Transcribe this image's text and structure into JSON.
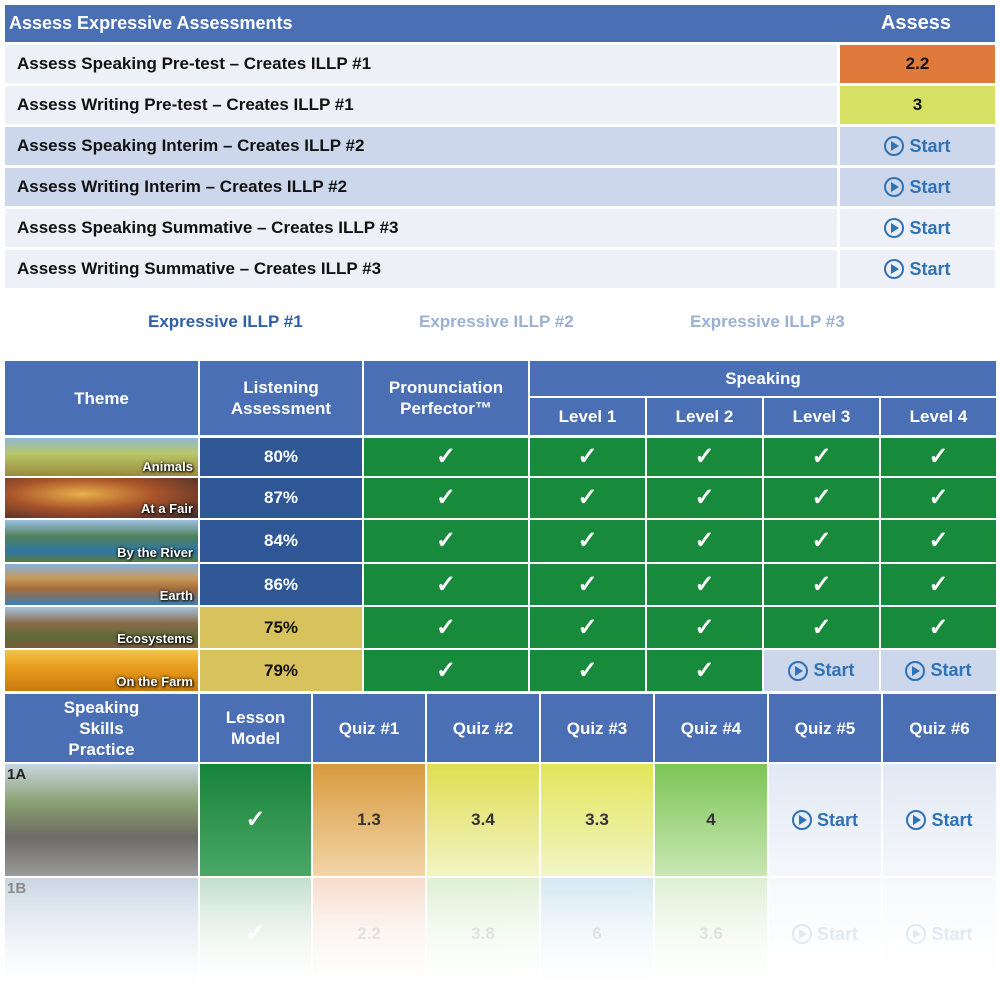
{
  "assessments": {
    "title": "Assess Expressive Assessments",
    "column_label": "Assess",
    "start_label": "Start",
    "rows": [
      {
        "label": "Assess Speaking Pre-test – Creates ILLP #1",
        "value": "2.2",
        "color": "#e07a3c"
      },
      {
        "label": "Assess Writing Pre-test – Creates ILLP #1",
        "value": "3",
        "color": "#d6e063"
      },
      {
        "label": "Assess Speaking Interim – Creates ILLP #2",
        "value": ""
      },
      {
        "label": "Assess Writing Interim – Creates ILLP #2",
        "value": ""
      },
      {
        "label": "Assess Speaking Summative – Creates ILLP #3",
        "value": ""
      },
      {
        "label": "Assess Writing Summative – Creates ILLP #3",
        "value": ""
      }
    ]
  },
  "illp_tabs": [
    "Expressive ILLP #1",
    "Expressive ILLP #2",
    "Expressive ILLP #3"
  ],
  "theme_table": {
    "headers": {
      "theme": "Theme",
      "listening": "Listening Assessment",
      "pronunciation": "Pronunciation Perfector™",
      "speaking": "Speaking",
      "levels": [
        "Level 1",
        "Level 2",
        "Level 3",
        "Level 4"
      ]
    },
    "check_mark": "✓",
    "start_label": "Start",
    "rows": [
      {
        "theme": "Animals",
        "score": "80%",
        "score_color": "#2f5795"
      },
      {
        "theme": "At a Fair",
        "score": "87%",
        "score_color": "#2f5795"
      },
      {
        "theme": "By the River",
        "score": "84%",
        "score_color": "#2f5795"
      },
      {
        "theme": "Earth",
        "score": "86%",
        "score_color": "#2f5795"
      },
      {
        "theme": "Ecosystems",
        "score": "75%",
        "score_color": "#d8c25e"
      },
      {
        "theme": "On the Farm",
        "score": "79%",
        "score_color": "#d8c25e"
      }
    ]
  },
  "skills_table": {
    "headers": {
      "skills": "Speaking Skills Practice",
      "lesson": "Lesson Model",
      "quizzes": [
        "Quiz #1",
        "Quiz #2",
        "Quiz #3",
        "Quiz #4",
        "Quiz #5",
        "Quiz #6"
      ]
    },
    "start_label": "Start",
    "check_mark": "✓",
    "units": [
      {
        "unit": "1A",
        "quizzes": [
          "1.3",
          "3.4",
          "3.3",
          "4"
        ]
      },
      {
        "unit": "1B",
        "quizzes": [
          "2.2",
          "3.8",
          "6",
          "3.6"
        ]
      }
    ]
  }
}
